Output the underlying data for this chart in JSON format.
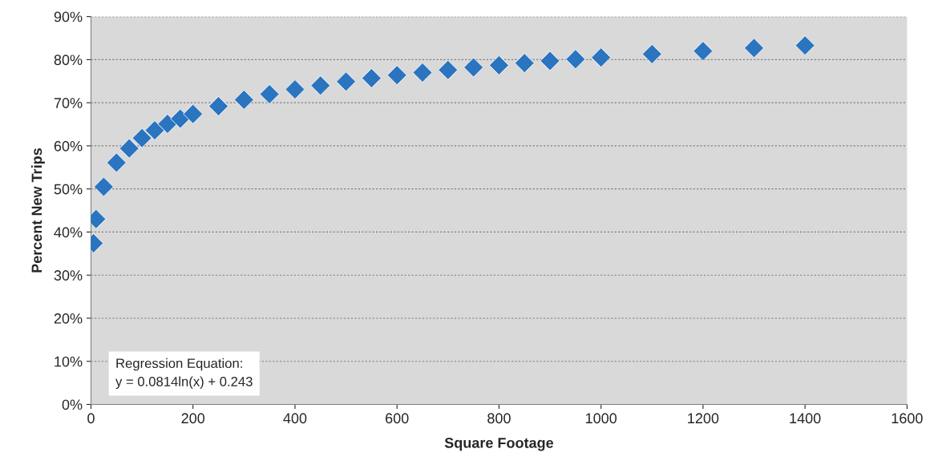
{
  "chart_data": {
    "type": "scatter",
    "xlabel": "Square Footage",
    "ylabel": "Percent New Trips",
    "x": [
      5,
      10,
      25,
      50,
      75,
      100,
      125,
      150,
      175,
      200,
      250,
      300,
      350,
      400,
      450,
      500,
      550,
      600,
      650,
      700,
      750,
      800,
      850,
      900,
      950,
      1000,
      1100,
      1200,
      1300,
      1400
    ],
    "series": [
      {
        "color": "#2a74c0",
        "values": [
          37.4,
          43.0,
          50.5,
          56.1,
          59.4,
          61.8,
          63.6,
          65.1,
          66.3,
          67.4,
          69.2,
          70.7,
          72.0,
          73.1,
          74.0,
          74.9,
          75.7,
          76.4,
          77.0,
          77.6,
          78.2,
          78.7,
          79.2,
          79.7,
          80.1,
          80.5,
          81.3,
          82.0,
          82.7,
          83.3
        ]
      }
    ],
    "marker": "diamond",
    "xlim": [
      0,
      1600
    ],
    "xticks": [
      0,
      200,
      400,
      600,
      800,
      1000,
      1200,
      1400,
      1600
    ],
    "ylim": [
      0,
      90
    ],
    "yticks": [
      {
        "value": 0,
        "label": "0%"
      },
      {
        "value": 10,
        "label": "10%"
      },
      {
        "value": 20,
        "label": "20%"
      },
      {
        "value": 30,
        "label": "30%"
      },
      {
        "value": 40,
        "label": "40%"
      },
      {
        "value": 50,
        "label": "50%"
      },
      {
        "value": 60,
        "label": "60%"
      },
      {
        "value": 70,
        "label": "70%"
      },
      {
        "value": 80,
        "label": "80%"
      },
      {
        "value": 90,
        "label": "90%"
      }
    ],
    "grid": "y",
    "annotations": [
      "Regression Equation:\ny = 0.0814ln(x) + 0.243"
    ]
  }
}
